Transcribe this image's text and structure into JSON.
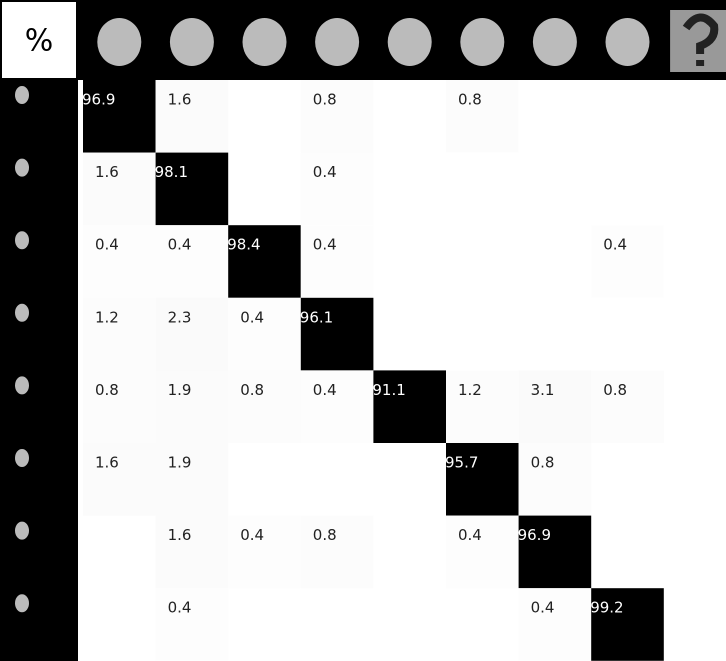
{
  "table": {
    "corner": "%",
    "rows": [
      [
        96.9,
        1.6,
        null,
        0.8,
        null,
        0.8,
        null,
        null,
        null
      ],
      [
        1.6,
        98.1,
        null,
        0.4,
        null,
        null,
        null,
        null,
        null
      ],
      [
        0.4,
        0.4,
        98.4,
        0.4,
        null,
        null,
        null,
        0.4,
        null
      ],
      [
        1.2,
        2.3,
        0.4,
        96.1,
        null,
        null,
        null,
        null,
        null
      ],
      [
        0.8,
        1.9,
        0.8,
        0.4,
        91.1,
        1.2,
        3.1,
        0.8,
        null
      ],
      [
        1.6,
        1.9,
        null,
        null,
        null,
        95.7,
        0.8,
        null,
        null
      ],
      [
        null,
        1.6,
        0.4,
        0.8,
        null,
        0.4,
        96.9,
        null,
        null
      ],
      [
        null,
        0.4,
        null,
        null,
        null,
        null,
        0.4,
        99.2,
        null
      ]
    ]
  }
}
